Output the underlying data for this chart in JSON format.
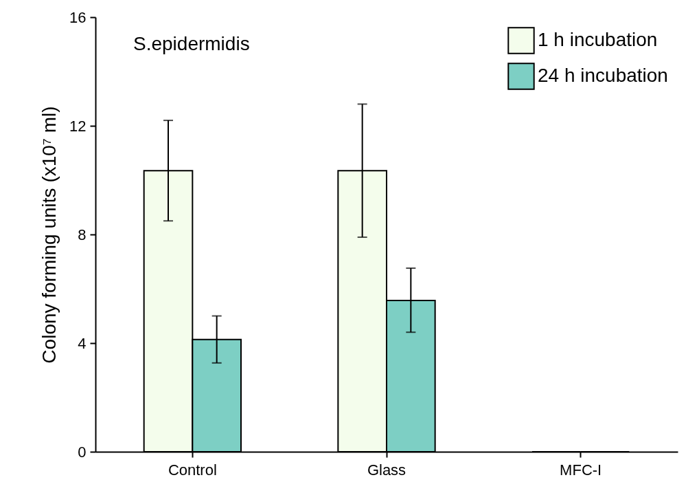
{
  "chart_data": {
    "type": "bar",
    "ylabel": "Colony forming units (x10⁷ ml)",
    "categories": [
      "Control",
      "Glass",
      "MFC-I"
    ],
    "series": [
      {
        "name": "1 h incubation",
        "color": "#f4fdec",
        "values": [
          10.35,
          10.35,
          0
        ],
        "errors": [
          [
            8.5,
            12.2
          ],
          [
            7.9,
            12.8
          ],
          null
        ]
      },
      {
        "name": "24 h incubation",
        "color": "#7dcfc4",
        "values": [
          4.13,
          5.57,
          0
        ],
        "errors": [
          [
            3.27,
            5.0
          ],
          [
            4.4,
            6.76
          ],
          null
        ]
      }
    ],
    "ylim": [
      0,
      16
    ],
    "yticks": [
      0,
      4,
      8,
      12,
      16
    ],
    "grid": false,
    "legend": "top right",
    "annotations": [
      "S.epidermidis"
    ]
  }
}
